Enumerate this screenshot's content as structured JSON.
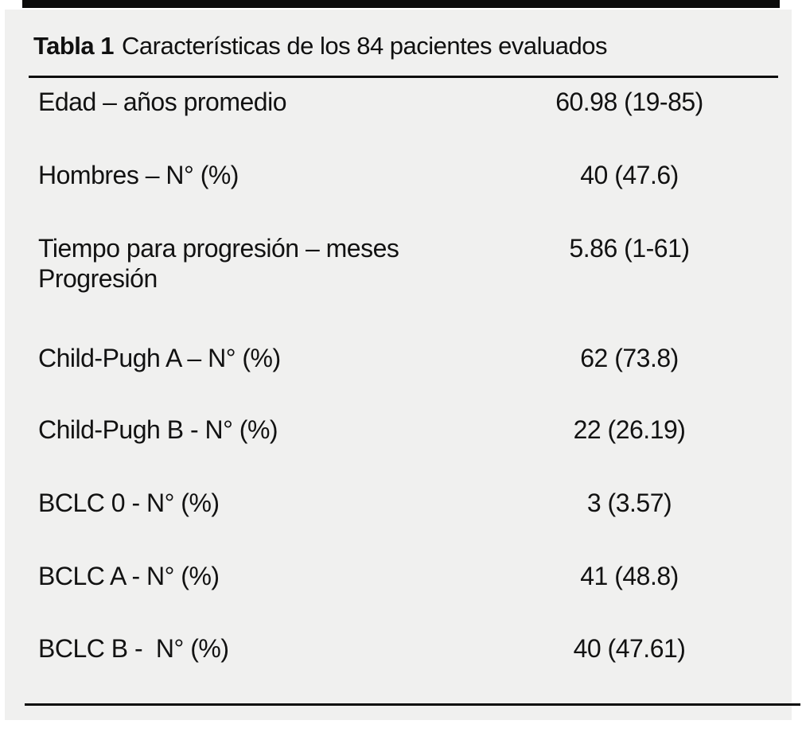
{
  "table": {
    "title_bold": "Tabla 1",
    "title_rest": "Características de los 84 pacientes evaluados",
    "rows": [
      {
        "label": "Edad – años promedio",
        "value": "60.98 (19-85)"
      },
      {
        "label": "Hombres – N° (%)",
        "value": "40 (47.6)"
      },
      {
        "label": "Tiempo para progresión – meses",
        "label2": "Progresión",
        "value": "5.86 (1-61)"
      },
      {
        "label": "Child-Pugh A – N° (%)",
        "value": "62 (73.8)"
      },
      {
        "label": "Child-Pugh B - N° (%)",
        "value": "22 (26.19)"
      },
      {
        "label": "BCLC 0 - N° (%)",
        "value": "3 (3.57)"
      },
      {
        "label": "BCLC A - N° (%)",
        "value": "41 (48.8)"
      },
      {
        "label": "BCLC B -  N° (%)",
        "value": "40 (47.61)"
      }
    ]
  },
  "colors": {
    "panel_background": "#f0f0ef",
    "top_bar": "#0b0b0b",
    "text": "#121212",
    "rule": "#0b0b0b",
    "page_background": "#ffffff"
  }
}
